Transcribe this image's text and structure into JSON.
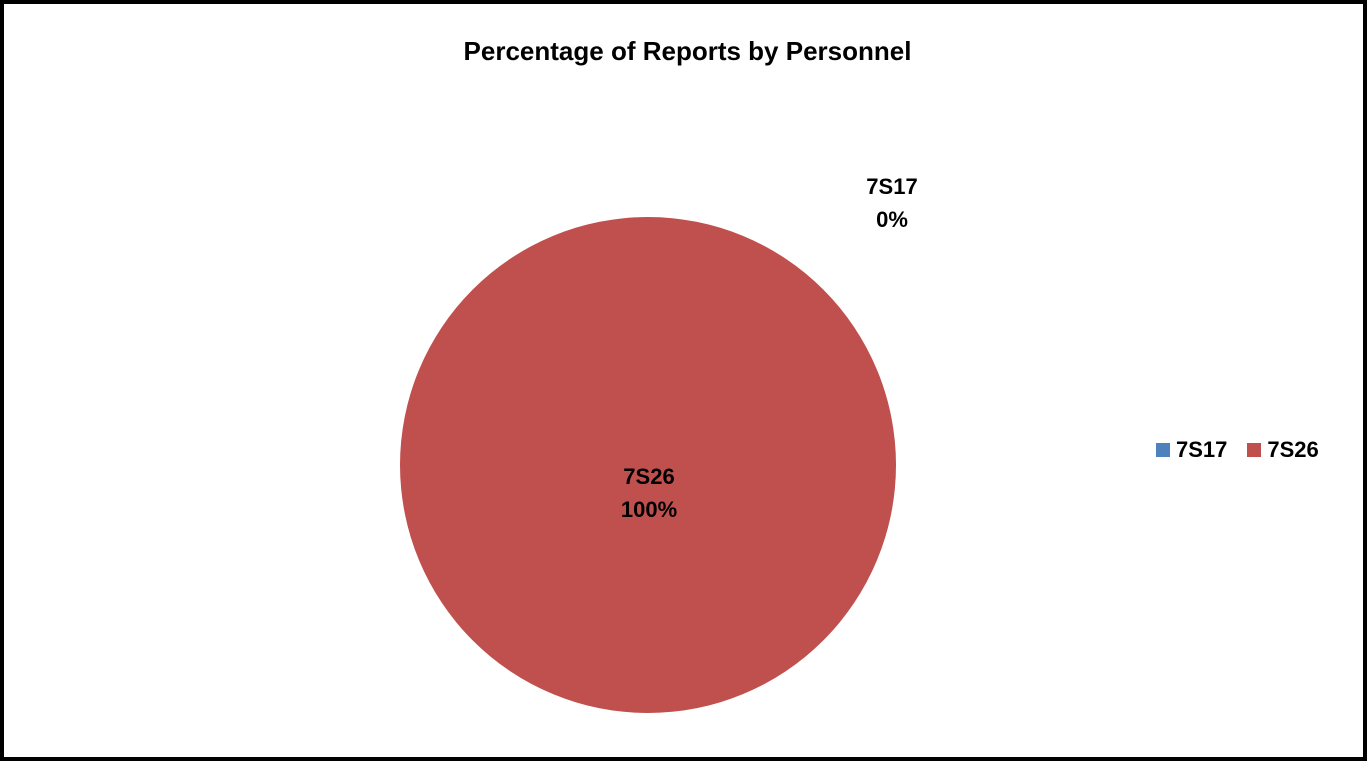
{
  "chart_data": {
    "type": "pie",
    "title": "Percentage of Reports by Personnel",
    "legend_position": "right",
    "slices": [
      {
        "name": "7S17",
        "value": 0,
        "label": "0%",
        "color": "#4F81BD"
      },
      {
        "name": "7S26",
        "value": 100,
        "label": "100%",
        "color": "#C0504D"
      }
    ]
  }
}
